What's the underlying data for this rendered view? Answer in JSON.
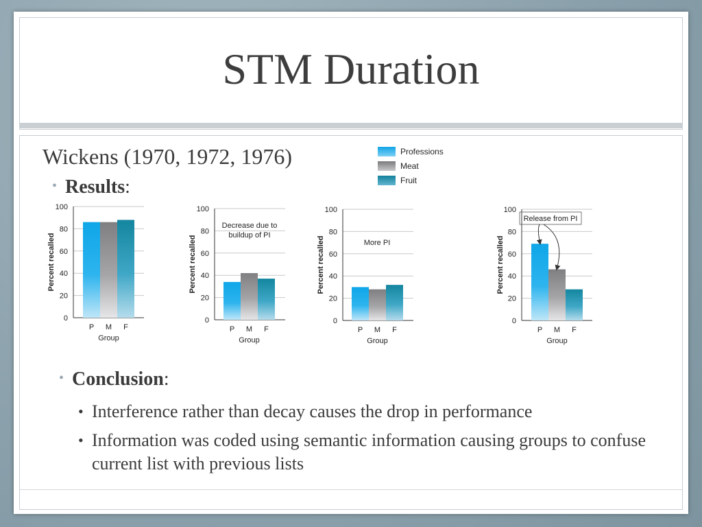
{
  "slide": {
    "title": "STM Duration",
    "subtitle": "Wickens (1970, 1972, 1976)",
    "results_label": "Results",
    "conclusion_label": "Conclusion",
    "colon": ":",
    "conclusion_points": [
      "Interference rather than decay causes the drop in performance",
      "Information was coded using semantic information causing groups to confuse current list with previous lists"
    ]
  },
  "legend": [
    {
      "label": "Professions",
      "color": "#1aa9e6"
    },
    {
      "label": "Meat",
      "color": "#8c8c8f"
    },
    {
      "label": "Fruit",
      "color": "#1c8fb0"
    }
  ],
  "chart_data": [
    {
      "type": "bar",
      "categories": [
        "P",
        "M",
        "F"
      ],
      "values": [
        86,
        86,
        88
      ],
      "xlabel": "Group",
      "ylabel": "Percent recalled",
      "ylim": [
        0,
        100
      ],
      "yticks": [
        0,
        20,
        40,
        60,
        80,
        100
      ],
      "annotation": ""
    },
    {
      "type": "bar",
      "categories": [
        "P",
        "M",
        "F"
      ],
      "values": [
        34,
        42,
        37
      ],
      "xlabel": "Group",
      "ylabel": "Percent recalled",
      "ylim": [
        0,
        100
      ],
      "yticks": [
        0,
        20,
        40,
        60,
        80,
        100
      ],
      "annotation": "Decrease due to buildup of PI"
    },
    {
      "type": "bar",
      "categories": [
        "P",
        "M",
        "F"
      ],
      "values": [
        30,
        28,
        32
      ],
      "xlabel": "Group",
      "ylabel": "Percent recalled",
      "ylim": [
        0,
        100
      ],
      "yticks": [
        0,
        20,
        40,
        60,
        80,
        100
      ],
      "annotation": "More PI"
    },
    {
      "type": "bar",
      "categories": [
        "P",
        "M",
        "F"
      ],
      "values": [
        69,
        46,
        28
      ],
      "xlabel": "Group",
      "ylabel": "Percent recalled",
      "ylim": [
        0,
        100
      ],
      "yticks": [
        0,
        20,
        40,
        60,
        80,
        100
      ],
      "annotation": "Release from PI"
    }
  ]
}
